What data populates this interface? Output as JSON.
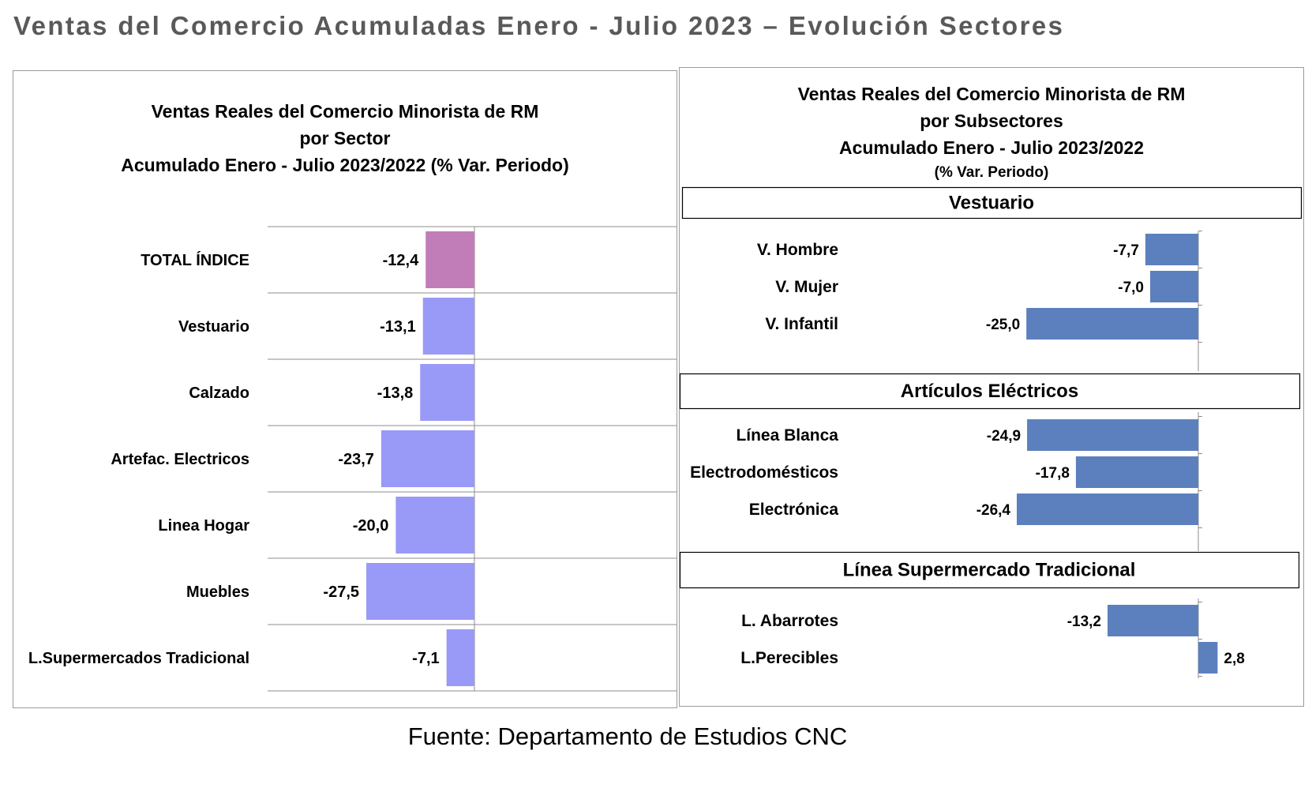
{
  "page": {
    "title": "Ventas del Comercio  Acumuladas Enero  - Julio 2023 – Evolución Sectores",
    "source": "Fuente: Departamento de Estudios CNC"
  },
  "colors": {
    "total_bar": "#c17db8",
    "sector_bar": "#9999f7",
    "subsector_bar": "#5b80bd",
    "grid": "#8c8c8c",
    "title_gray": "#595959"
  },
  "chart_data": [
    {
      "type": "bar",
      "orientation": "horizontal",
      "title_lines": [
        "Ventas Reales del Comercio Minorista de RM",
        "por Sector",
        "Acumulado Enero - Julio 2023/2022 (% Var. Periodo)"
      ],
      "categories": [
        "TOTAL ÍNDICE",
        "Vestuario",
        "Calzado",
        "Artefac. Electricos",
        "Linea Hogar",
        "Muebles",
        "L.Supermercados Tradicional"
      ],
      "values": [
        -12.4,
        -13.1,
        -13.8,
        -23.7,
        -20.0,
        -27.5,
        -7.1
      ],
      "data_labels": [
        "-12,4",
        "-13,1",
        "-13,8",
        "-23,7",
        "-20,0",
        "-27,5",
        "-7,1"
      ],
      "xlim": [
        -50,
        50
      ],
      "grid": "horizontal separators"
    },
    {
      "type": "bar",
      "orientation": "horizontal",
      "title_lines": [
        "Ventas Reales del Comercio Minorista de RM",
        "por Subsectores",
        "Acumulado Enero - Julio 2023/2022"
      ],
      "title_note": "(% Var. Periodo)",
      "xlim": [
        -50,
        50
      ],
      "groups": [
        {
          "name": "Vestuario",
          "categories": [
            "V. Hombre",
            "V. Mujer",
            "V. Infantil"
          ],
          "values": [
            -7.7,
            -7.0,
            -25.0
          ],
          "data_labels": [
            "-7,7",
            "-7,0",
            "-25,0"
          ]
        },
        {
          "name": "Artículos Eléctricos",
          "categories": [
            "Línea Blanca",
            "Electrodomésticos",
            "Electrónica"
          ],
          "values": [
            -24.9,
            -17.8,
            -26.4
          ],
          "data_labels": [
            "-24,9",
            "-17,8",
            "-26,4"
          ]
        },
        {
          "name": "Línea  Supermercado Tradicional",
          "categories": [
            "L. Abarrotes",
            "L.Perecibles"
          ],
          "values": [
            -13.2,
            2.8
          ],
          "data_labels": [
            "-13,2",
            "2,8"
          ]
        }
      ]
    }
  ]
}
